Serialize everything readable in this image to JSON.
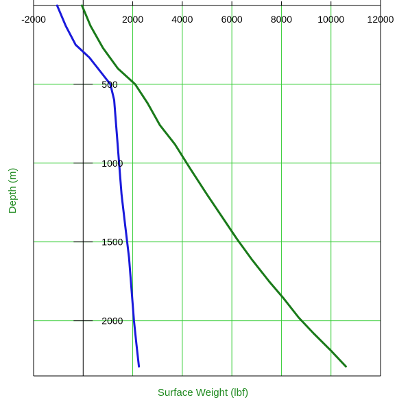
{
  "chart_data": {
    "type": "line",
    "xlabel": "Surface Weight (lbf)",
    "ylabel": "Depth (m)",
    "xlim": [
      -2000,
      12000
    ],
    "ylim": [
      0,
      2350
    ],
    "y_inverted": true,
    "grid": true,
    "grid_color": "#33cc33",
    "x_ticks": [
      -2000,
      2000,
      4000,
      6000,
      8000,
      10000,
      12000
    ],
    "x_tick_labels": [
      "-2000",
      "2000",
      "4000",
      "6000",
      "8000",
      "10000",
      "12000"
    ],
    "y_ticks": [
      500,
      1000,
      1500,
      2000
    ],
    "y_tick_labels": [
      "500",
      "1000",
      "1500",
      "2000"
    ],
    "series": [
      {
        "color": "#1a7a1a",
        "points": [
          [
            -50,
            0
          ],
          [
            300,
            130
          ],
          [
            800,
            270
          ],
          [
            1400,
            400
          ],
          [
            2100,
            500
          ],
          [
            2600,
            620
          ],
          [
            3100,
            760
          ],
          [
            3700,
            880
          ],
          [
            4300,
            1030
          ],
          [
            5000,
            1200
          ],
          [
            5600,
            1340
          ],
          [
            6200,
            1480
          ],
          [
            6800,
            1610
          ],
          [
            7500,
            1750
          ],
          [
            8100,
            1860
          ],
          [
            8700,
            1980
          ],
          [
            9300,
            2080
          ],
          [
            10000,
            2190
          ],
          [
            10600,
            2290
          ]
        ]
      },
      {
        "color": "#1a1adb",
        "points": [
          [
            -1050,
            0
          ],
          [
            -700,
            130
          ],
          [
            -300,
            250
          ],
          [
            250,
            330
          ],
          [
            700,
            420
          ],
          [
            1100,
            500
          ],
          [
            1250,
            600
          ],
          [
            1350,
            800
          ],
          [
            1450,
            1000
          ],
          [
            1550,
            1200
          ],
          [
            1700,
            1400
          ],
          [
            1850,
            1600
          ],
          [
            1950,
            1800
          ],
          [
            2050,
            2000
          ],
          [
            2150,
            2150
          ],
          [
            2250,
            2290
          ]
        ]
      }
    ]
  }
}
